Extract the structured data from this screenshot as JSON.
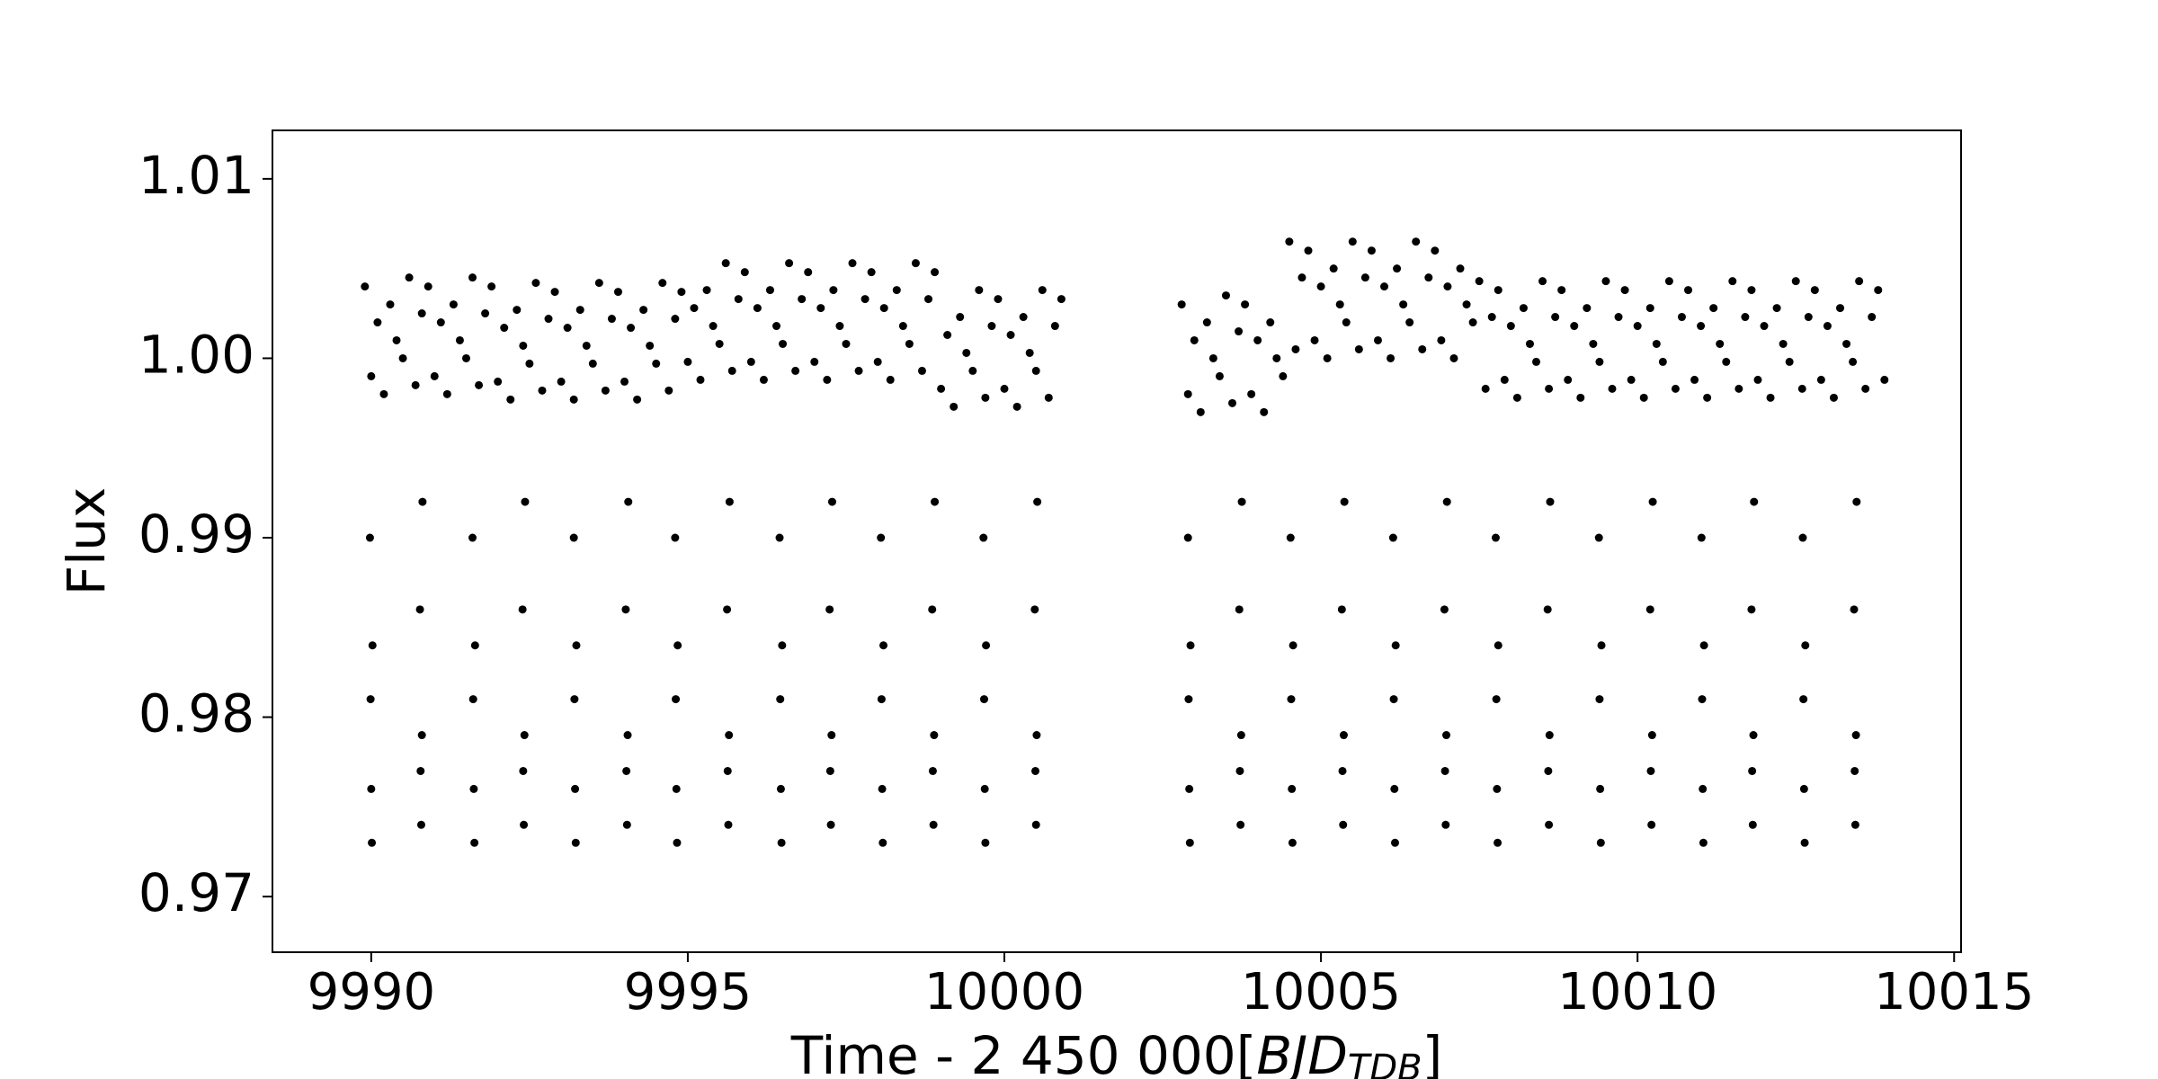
{
  "chart_data": {
    "type": "scatter",
    "ylabel": "Flux",
    "xlabel": [
      "Time - 2 450 000[",
      "BJD",
      "TDB",
      "]"
    ],
    "xlim": [
      9988.44,
      10015.11
    ],
    "ylim": [
      0.9669,
      1.0127
    ],
    "xticks": [
      9990,
      9995,
      10000,
      10005,
      10010,
      10015
    ],
    "yticks": [
      0.97,
      0.98,
      0.99,
      {
        "value": 1,
        "label": "1.00"
      },
      1.01
    ],
    "series": [
      {
        "color": "#000000",
        "x": [
          9989.9,
          9990,
          9990.1,
          9990.2,
          9990.3,
          9990.4,
          9990.5,
          9990.6,
          9990.7,
          9990.8,
          9990.9,
          9991,
          9991.1,
          9991.2,
          9991.3,
          9991.4,
          9991.5,
          9991.6,
          9991.7,
          9991.8,
          9991.9,
          9992,
          9992.1,
          9992.2,
          9992.3,
          9992.4,
          9992.5,
          9992.6,
          9992.7,
          9992.8,
          9992.9,
          9993,
          9993.1,
          9993.2,
          9993.3,
          9993.4,
          9993.5,
          9993.6,
          9993.7,
          9993.8,
          9993.9,
          9994,
          9994.1,
          9994.2,
          9994.3,
          9994.4,
          9994.5,
          9994.6,
          9994.7,
          9994.8,
          9994.9,
          9995,
          9995.1,
          9995.2,
          9995.3,
          9995.4,
          9995.5,
          9995.6,
          9995.7,
          9995.8,
          9995.9,
          9996,
          9996.1,
          9996.2,
          9996.3,
          9996.4,
          9996.5,
          9996.6,
          9996.7,
          9996.8,
          9996.9,
          9997,
          9997.1,
          9997.2,
          9997.3,
          9997.4,
          9997.5,
          9997.6,
          9997.7,
          9997.8,
          9997.9,
          9998,
          9998.1,
          9998.2,
          9998.3,
          9998.4,
          9998.5,
          9998.6,
          9998.7,
          9998.8,
          9998.9,
          9999,
          9999.1,
          9999.2,
          9999.3,
          9999.4,
          9999.5,
          9999.6,
          9999.7,
          9999.8,
          9999.9,
          10000,
          10000.1,
          10000.2,
          10000.3,
          10000.4,
          10000.5,
          10000.6,
          10000.7,
          10000.8,
          10000.9
        ],
        "values": [
          1.004,
          0.999,
          1.002,
          0.998,
          1.003,
          1.001,
          1.0,
          1.0045,
          0.9985,
          1.0025,
          1.004,
          0.999,
          1.002,
          0.998,
          1.003,
          1.001,
          1.0,
          1.0045,
          0.9985,
          1.0025,
          1.004,
          0.9987,
          1.0017,
          0.9977,
          1.0027,
          1.0007,
          0.9997,
          1.0042,
          0.9982,
          1.0022,
          1.0037,
          0.9987,
          1.0017,
          0.9977,
          1.0027,
          1.0007,
          0.9997,
          1.0042,
          0.9982,
          1.0022,
          1.0037,
          0.9987,
          1.0017,
          0.9977,
          1.0027,
          1.0007,
          0.9997,
          1.0042,
          0.9982,
          1.0022,
          1.0037,
          0.9998,
          1.0028,
          0.9988,
          1.0038,
          1.0018,
          1.0008,
          1.0053,
          0.9993,
          1.0033,
          1.0048,
          0.9998,
          1.0028,
          0.9988,
          1.0038,
          1.0018,
          1.0008,
          1.0053,
          0.9993,
          1.0033,
          1.0048,
          0.9998,
          1.0028,
          0.9988,
          1.0038,
          1.0018,
          1.0008,
          1.0053,
          0.9993,
          1.0033,
          1.0048,
          0.9998,
          1.0028,
          0.9988,
          1.0038,
          1.0018,
          1.0008,
          1.0053,
          0.9993,
          1.0033,
          1.0048,
          0.9983,
          1.0013,
          0.9973,
          1.0023,
          1.0003,
          0.9993,
          1.0038,
          0.9978,
          1.0018,
          1.0033,
          0.9983,
          1.0013,
          0.9973,
          1.0023,
          1.0003,
          0.9993,
          1.0038,
          0.9978,
          1.0018,
          1.0033
        ]
      },
      {
        "color": "#000000",
        "x": [
          10002.8,
          10002.9,
          10003,
          10003.1,
          10003.2,
          10003.3,
          10003.4,
          10003.5,
          10003.6,
          10003.7,
          10003.8,
          10003.9,
          10004,
          10004.1,
          10004.2,
          10004.3,
          10004.4,
          10004.5,
          10004.6,
          10004.7,
          10004.8,
          10004.9,
          10005,
          10005.1,
          10005.2,
          10005.3,
          10005.4,
          10005.5,
          10005.6,
          10005.7,
          10005.8,
          10005.9,
          10006,
          10006.1,
          10006.2,
          10006.3,
          10006.4,
          10006.5,
          10006.6,
          10006.7,
          10006.8,
          10006.9,
          10007,
          10007.1,
          10007.2,
          10007.3,
          10007.4,
          10007.5,
          10007.6,
          10007.7,
          10007.8,
          10007.9,
          10008,
          10008.1,
          10008.2,
          10008.3,
          10008.4,
          10008.5,
          10008.6,
          10008.7,
          10008.8,
          10008.9,
          10009,
          10009.1,
          10009.2,
          10009.3,
          10009.4,
          10009.5,
          10009.6,
          10009.7,
          10009.8,
          10009.9,
          10010,
          10010.1,
          10010.2,
          10010.3,
          10010.4,
          10010.5,
          10010.6,
          10010.7,
          10010.8,
          10010.9,
          10011,
          10011.1,
          10011.2,
          10011.3,
          10011.4,
          10011.5,
          10011.6,
          10011.7,
          10011.8,
          10011.9,
          10012,
          10012.1,
          10012.2,
          10012.3,
          10012.4,
          10012.5,
          10012.6,
          10012.7,
          10012.8,
          10012.9,
          10013,
          10013.1,
          10013.2,
          10013.3,
          10013.4,
          10013.5,
          10013.6,
          10013.7,
          10013.8,
          10013.9
        ],
        "values": [
          1.003,
          0.998,
          1.001,
          0.997,
          1.002,
          1.0,
          0.999,
          1.0035,
          0.9975,
          1.0015,
          1.003,
          0.998,
          1.001,
          0.997,
          1.002,
          1.0,
          0.999,
          1.0065,
          1.0005,
          1.0045,
          1.006,
          1.001,
          1.004,
          1.0,
          1.005,
          1.003,
          1.002,
          1.0065,
          1.0005,
          1.0045,
          1.006,
          1.001,
          1.004,
          1.0,
          1.005,
          1.003,
          1.002,
          1.0065,
          1.0005,
          1.0045,
          1.006,
          1.001,
          1.004,
          1.0,
          1.005,
          1.003,
          1.002,
          1.0043,
          0.9983,
          1.0023,
          1.0038,
          0.9988,
          1.0018,
          0.9978,
          1.0028,
          1.0008,
          0.9998,
          1.0043,
          0.9983,
          1.0023,
          1.0038,
          0.9988,
          1.0018,
          0.9978,
          1.0028,
          1.0008,
          0.9998,
          1.0043,
          0.9983,
          1.0023,
          1.0038,
          0.9988,
          1.0018,
          0.9978,
          1.0028,
          1.0008,
          0.9998,
          1.0043,
          0.9983,
          1.0023,
          1.0038,
          0.9988,
          1.0018,
          0.9978,
          1.0028,
          1.0008,
          0.9998,
          1.0043,
          0.9983,
          1.0023,
          1.0038,
          0.9988,
          1.0018,
          0.9978,
          1.0028,
          1.0008,
          0.9998,
          1.0043,
          0.9983,
          1.0023,
          1.0038,
          0.9988,
          1.0018,
          0.9978,
          1.0028,
          1.0008,
          0.9998,
          1.0043,
          0.9983,
          1.0023,
          1.0038,
          0.9988
        ]
      },
      {
        "color": "#000000",
        "x": [
          9989.98,
          9989.99,
          9990,
          9990.01,
          9990.02,
          9990.77,
          9990.78,
          9990.79,
          9990.8,
          9990.81,
          9991.6,
          9991.61,
          9991.62,
          9991.63,
          9991.64,
          9992.39,
          9992.4,
          9992.41,
          9992.42,
          9992.43,
          9993.2,
          9993.21,
          9993.22,
          9993.23,
          9993.24,
          9994.02,
          9994.03,
          9994.04,
          9994.05,
          9994.06,
          9994.8,
          9994.81,
          9994.82,
          9994.83,
          9994.84,
          9995.62,
          9995.63,
          9995.64,
          9995.65,
          9995.66,
          9996.45,
          9996.46,
          9996.47,
          9996.48,
          9996.49,
          9997.24,
          9997.25,
          9997.26,
          9997.27,
          9997.28,
          9998.05,
          9998.06,
          9998.07,
          9998.08,
          9998.09,
          9998.86,
          9998.87,
          9998.88,
          9998.89,
          9998.9,
          9999.67,
          9999.68,
          9999.69,
          9999.7,
          9999.71,
          10000.48,
          10000.49,
          10000.5,
          10000.51,
          10000.52,
          10002.9,
          10002.91,
          10002.92,
          10002.93,
          10002.94,
          10003.71,
          10003.72,
          10003.73,
          10003.74,
          10003.75,
          10004.52,
          10004.53,
          10004.54,
          10004.55,
          10004.56,
          10005.33,
          10005.34,
          10005.35,
          10005.36,
          10005.37,
          10006.14,
          10006.15,
          10006.16,
          10006.17,
          10006.18,
          10006.95,
          10006.96,
          10006.97,
          10006.98,
          10006.99,
          10007.76,
          10007.77,
          10007.78,
          10007.79,
          10007.8,
          10008.58,
          10008.59,
          10008.6,
          10008.61,
          10008.62,
          10009.39,
          10009.4,
          10009.41,
          10009.42,
          10009.43,
          10010.2,
          10010.21,
          10010.22,
          10010.23,
          10010.24,
          10011.01,
          10011.02,
          10011.03,
          10011.04,
          10011.05,
          10011.8,
          10011.81,
          10011.82,
          10011.83,
          10011.84,
          10012.61,
          10012.62,
          10012.63,
          10012.64,
          10012.65,
          10013.42,
          10013.43,
          10013.44,
          10013.45,
          10013.46
        ],
        "values": [
          0.99,
          0.981,
          0.976,
          0.973,
          0.984,
          0.986,
          0.977,
          0.974,
          0.979,
          0.992,
          0.99,
          0.981,
          0.976,
          0.973,
          0.984,
          0.986,
          0.977,
          0.974,
          0.979,
          0.992,
          0.99,
          0.981,
          0.976,
          0.973,
          0.984,
          0.986,
          0.977,
          0.974,
          0.979,
          0.992,
          0.99,
          0.981,
          0.976,
          0.973,
          0.984,
          0.986,
          0.977,
          0.974,
          0.979,
          0.992,
          0.99,
          0.981,
          0.976,
          0.973,
          0.984,
          0.986,
          0.977,
          0.974,
          0.979,
          0.992,
          0.99,
          0.981,
          0.976,
          0.973,
          0.984,
          0.986,
          0.977,
          0.974,
          0.979,
          0.992,
          0.99,
          0.981,
          0.976,
          0.973,
          0.984,
          0.986,
          0.977,
          0.974,
          0.979,
          0.992,
          0.99,
          0.981,
          0.976,
          0.973,
          0.984,
          0.986,
          0.977,
          0.974,
          0.979,
          0.992,
          0.99,
          0.981,
          0.976,
          0.973,
          0.984,
          0.986,
          0.977,
          0.974,
          0.979,
          0.992,
          0.99,
          0.981,
          0.976,
          0.973,
          0.984,
          0.986,
          0.977,
          0.974,
          0.979,
          0.992,
          0.99,
          0.981,
          0.976,
          0.973,
          0.984,
          0.986,
          0.977,
          0.974,
          0.979,
          0.992,
          0.99,
          0.981,
          0.976,
          0.973,
          0.984,
          0.986,
          0.977,
          0.974,
          0.979,
          0.992,
          0.99,
          0.981,
          0.976,
          0.973,
          0.984,
          0.986,
          0.977,
          0.974,
          0.979,
          0.992,
          0.99,
          0.981,
          0.976,
          0.973,
          0.984,
          0.986,
          0.977,
          0.974,
          0.979,
          0.992
        ]
      }
    ]
  }
}
